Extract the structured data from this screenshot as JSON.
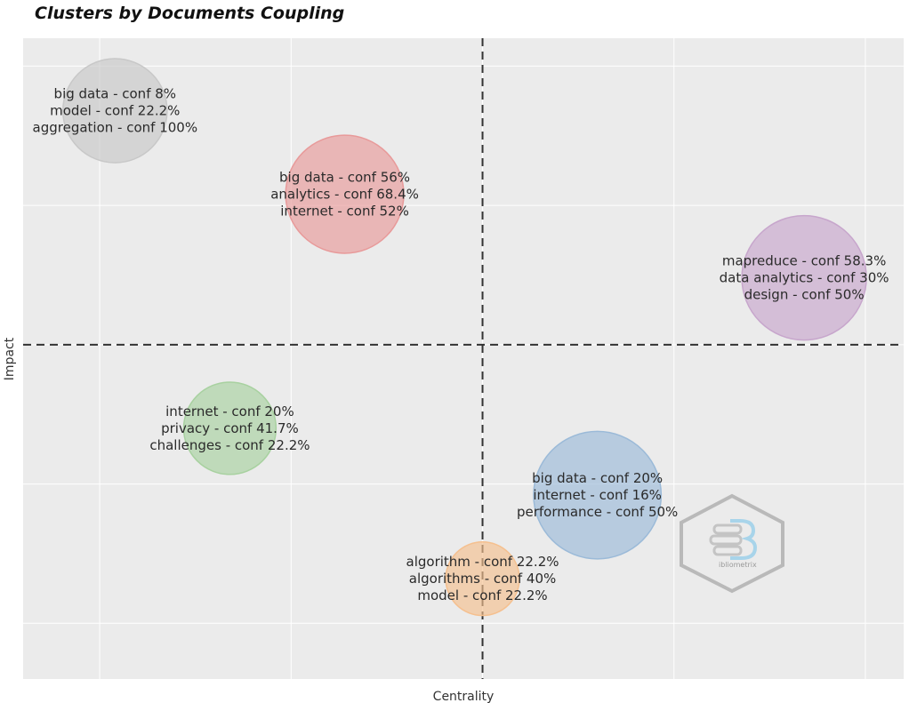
{
  "chart_data": {
    "type": "scatter",
    "subtype": "bubble",
    "title": "Clusters by Documents Coupling",
    "xlabel": "Centrality",
    "ylabel": "Impact",
    "grid": true,
    "background": "#ebebeb",
    "reference_lines": {
      "x": 0.5,
      "y": 0.5,
      "style": "dashed"
    },
    "xlim": [
      -0.1,
      1.05
    ],
    "ylim": [
      -0.1,
      1.05
    ],
    "series": [
      {
        "color": "#c8c8c8",
        "x": 0.02,
        "y": 0.92,
        "size": 0.7,
        "labels": [
          "big data - conf 8%",
          "model - conf 22.2%",
          "aggregation - conf 100%"
        ]
      },
      {
        "color": "#e89a9a",
        "x": 0.32,
        "y": 0.77,
        "size": 0.9,
        "labels": [
          "big data - conf 56%",
          "analytics - conf 68.4%",
          "internet - conf 52%"
        ]
      },
      {
        "color": "#c7a6cc",
        "x": 0.92,
        "y": 0.62,
        "size": 1.0,
        "labels": [
          "mapreduce - conf 58.3%",
          "data analytics - conf 30%",
          "design - conf 50%"
        ]
      },
      {
        "color": "#a8d1a0",
        "x": 0.17,
        "y": 0.35,
        "size": 0.55,
        "labels": [
          "internet - conf 20%",
          "privacy - conf 41.7%",
          "challenges - conf 22.2%"
        ]
      },
      {
        "color": "#9bbad8",
        "x": 0.65,
        "y": 0.23,
        "size": 1.05,
        "labels": [
          "big data - conf 20%",
          "internet - conf 16%",
          "performance - conf 50%"
        ]
      },
      {
        "color": "#f5c08f",
        "x": 0.5,
        "y": 0.08,
        "size": 0.35,
        "labels": [
          "algorithm - conf 22.2%",
          "algorithms - conf 40%",
          "model - conf 22.2%"
        ]
      }
    ]
  },
  "logo": {
    "name": "bibliometrix-logo",
    "text": "ibliometrix"
  }
}
